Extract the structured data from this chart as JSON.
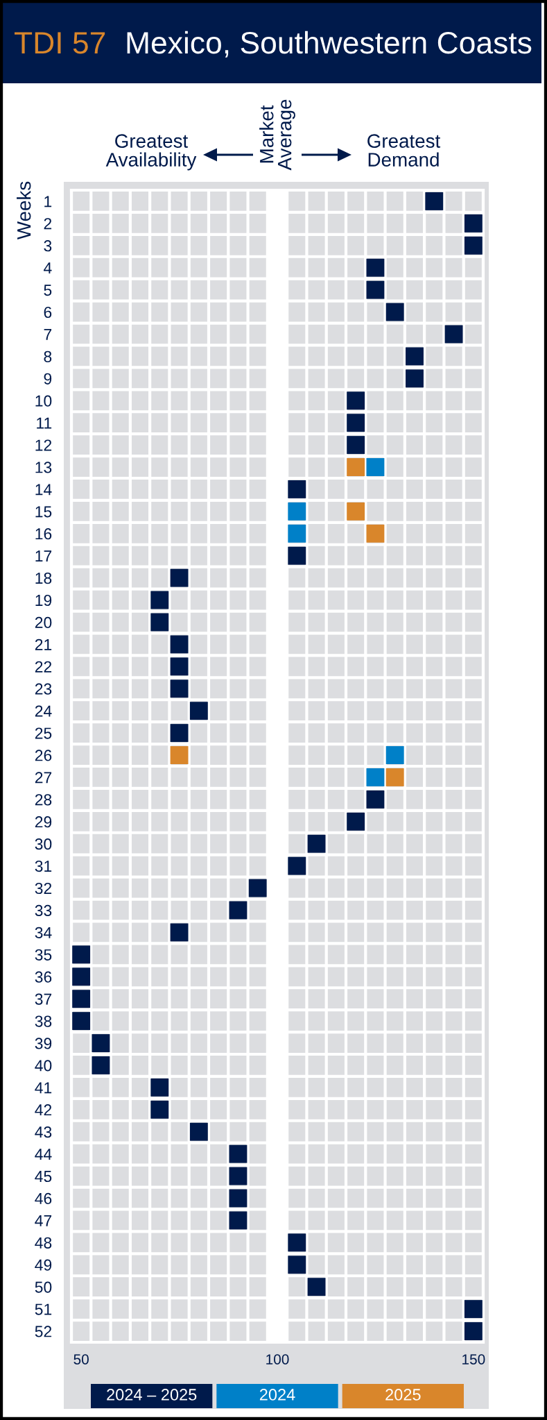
{
  "chart_data": {
    "type": "scatter",
    "title": "TDI 57",
    "subtitle": "Mexico, Southwestern Coasts",
    "ylabel": "Weeks",
    "annotations": [
      "Greatest\nAvailability",
      "Market\nAverage",
      "Greatest\nDemand"
    ],
    "bands": [
      {
        "axis": "x",
        "from": 97.5,
        "to": 102.5,
        "color": "#ffffff"
      }
    ],
    "xlim": [
      47.5,
      152.5
    ],
    "xticks": [
      {
        "value": 47.5,
        "label": null
      },
      50,
      {
        "value": 52.5,
        "label": null
      },
      {
        "value": 57.5,
        "label": null
      },
      {
        "value": 62.5,
        "label": null
      },
      {
        "value": 67.5,
        "label": null
      },
      {
        "value": 72.5,
        "label": null
      },
      {
        "value": 77.5,
        "label": null
      },
      {
        "value": 82.5,
        "label": null
      },
      {
        "value": 87.5,
        "label": null
      },
      {
        "value": 92.5,
        "label": null
      },
      {
        "value": 97.5,
        "label": null
      },
      100,
      {
        "value": 102.5,
        "label": null
      },
      {
        "value": 107.5,
        "label": null
      },
      {
        "value": 112.5,
        "label": null
      },
      {
        "value": 117.5,
        "label": null
      },
      {
        "value": 122.5,
        "label": null
      },
      {
        "value": 127.5,
        "label": null
      },
      {
        "value": 132.5,
        "label": null
      },
      {
        "value": 137.5,
        "label": null
      },
      {
        "value": 142.5,
        "label": null
      },
      {
        "value": 147.5,
        "label": null
      },
      150,
      {
        "value": 152.5,
        "label": null
      }
    ],
    "ylim": [
      52.5,
      0.5
    ],
    "yticks": [
      1,
      2,
      3,
      4,
      5,
      6,
      7,
      8,
      9,
      10,
      11,
      12,
      13,
      14,
      15,
      16,
      17,
      18,
      19,
      20,
      21,
      22,
      23,
      24,
      25,
      26,
      27,
      28,
      29,
      30,
      31,
      32,
      33,
      34,
      35,
      36,
      37,
      38,
      39,
      40,
      41,
      42,
      43,
      44,
      45,
      46,
      47,
      48,
      49,
      50,
      51,
      52
    ],
    "grid": true,
    "marker": "square",
    "legend": "bottom",
    "series": [
      {
        "name": "2024 – 2025",
        "color": "#001a4b",
        "x": [
          140,
          150,
          150,
          125,
          125,
          130,
          145,
          135,
          135,
          120,
          120,
          120,
          105,
          105,
          75,
          70,
          70,
          75,
          75,
          75,
          80,
          75,
          125,
          120,
          110,
          105,
          95,
          90,
          75,
          50,
          50,
          50,
          50,
          55,
          55,
          70,
          70,
          80,
          90,
          90,
          90,
          90,
          105,
          105,
          110,
          150,
          150
        ],
        "values": [
          1,
          2,
          3,
          4,
          5,
          6,
          7,
          8,
          9,
          10,
          11,
          12,
          14,
          17,
          18,
          19,
          20,
          21,
          22,
          23,
          24,
          25,
          28,
          29,
          30,
          31,
          32,
          33,
          34,
          35,
          36,
          37,
          38,
          39,
          40,
          41,
          42,
          43,
          44,
          45,
          46,
          47,
          48,
          49,
          50,
          51,
          52
        ]
      },
      {
        "name": "2024",
        "color": "#0080c8",
        "x": [
          125,
          105,
          105,
          130,
          125
        ],
        "values": [
          13,
          15,
          16,
          26,
          27
        ]
      },
      {
        "name": "2025",
        "color": "#d9862b",
        "x": [
          120,
          120,
          125,
          75,
          130
        ],
        "values": [
          13,
          15,
          16,
          26,
          27
        ]
      }
    ]
  }
}
